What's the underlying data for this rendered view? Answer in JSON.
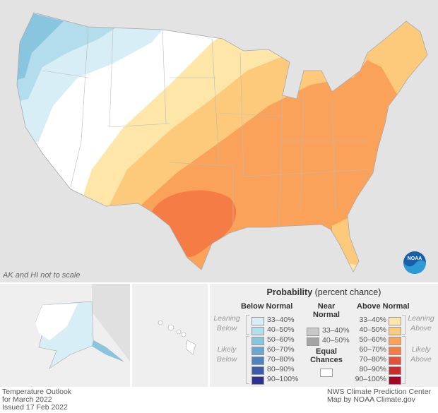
{
  "map": {
    "scale_note": "AK and HI not to scale",
    "logo_text": "NOAA"
  },
  "legend": {
    "title_bold": "Probability",
    "title_rest": "(percent chance)",
    "below": {
      "heading": "Below Normal",
      "leaning_label": [
        "Leaning",
        "Below"
      ],
      "likely_label": [
        "Likely",
        "Below"
      ],
      "items": [
        {
          "label": "33–40%",
          "color": "#d8eef7"
        },
        {
          "label": "40–50%",
          "color": "#b3dcec"
        },
        {
          "label": "50–60%",
          "color": "#8ac5e0"
        },
        {
          "label": "60–70%",
          "color": "#6aa7d1"
        },
        {
          "label": "70–80%",
          "color": "#4f82c2"
        },
        {
          "label": "80–90%",
          "color": "#3b5aab"
        },
        {
          "label": "90–100%",
          "color": "#2e3192"
        }
      ]
    },
    "near": {
      "heading": [
        "Near",
        "Normal"
      ],
      "items": [
        {
          "label": "33–40%",
          "color": "#c8c8c8"
        },
        {
          "label": "40–50%",
          "color": "#a4a4a4"
        }
      ]
    },
    "equal": {
      "heading": [
        "Equal",
        "Chances"
      ],
      "color": "#ffffff"
    },
    "above": {
      "heading": "Above Normal",
      "leaning_label": [
        "Leaning",
        "Above"
      ],
      "likely_label": [
        "Likely",
        "Above"
      ],
      "items": [
        {
          "label": "33–40%",
          "color": "#fde6a8"
        },
        {
          "label": "40–50%",
          "color": "#fdc97a"
        },
        {
          "label": "50–60%",
          "color": "#fba25a"
        },
        {
          "label": "60–70%",
          "color": "#f57d45"
        },
        {
          "label": "70–80%",
          "color": "#e4503a"
        },
        {
          "label": "80–90%",
          "color": "#cc2a2a"
        },
        {
          "label": "90–100%",
          "color": "#a50026"
        }
      ]
    }
  },
  "footer": {
    "left": [
      "Temperature Outlook",
      "for March 2022",
      "Issued 17 Feb 2022"
    ],
    "right": [
      "NWS Climate Prediction Center",
      "Map by NOAA Climate.gov"
    ]
  }
}
